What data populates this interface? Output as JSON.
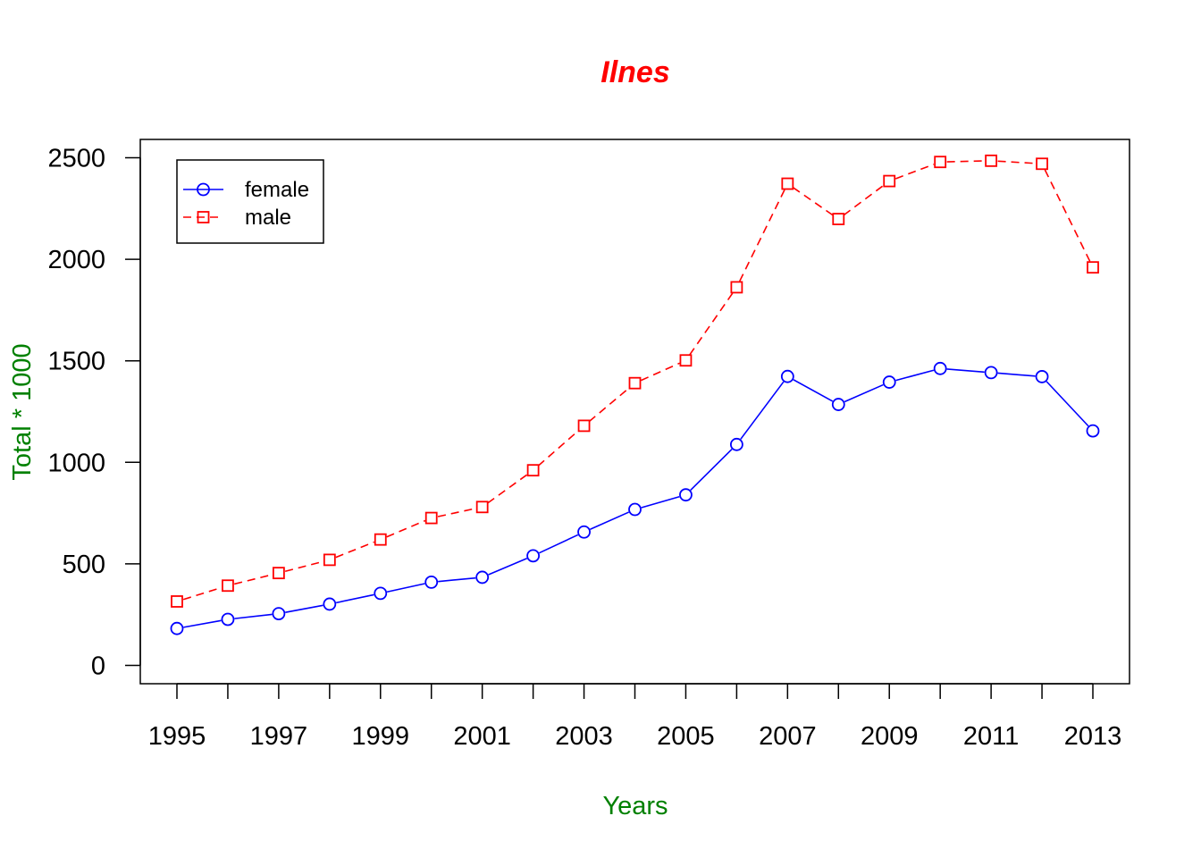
{
  "chart_data": {
    "type": "line",
    "title": "Ilnes",
    "xlabel": "Years",
    "ylabel": "Total * 1000",
    "colors": {
      "title": "#ff0000",
      "axis_labels": "#008000",
      "female": "#0000ff",
      "male": "#ff0000"
    },
    "x": [
      1995,
      1996,
      1997,
      1998,
      1999,
      2000,
      2001,
      2002,
      2003,
      2004,
      2005,
      2006,
      2007,
      2008,
      2009,
      2010,
      2011,
      2012,
      2013
    ],
    "x_tick_labels": [
      "1995",
      "1997",
      "1999",
      "2001",
      "2003",
      "2005",
      "2007",
      "2009",
      "2011",
      "2013"
    ],
    "y_tick_labels": [
      "0",
      "500",
      "1000",
      "1500",
      "2000",
      "2500"
    ],
    "ylim": [
      -90,
      2590
    ],
    "xlim": [
      1994.28,
      2013.72
    ],
    "grid": false,
    "legend_position": "top-left",
    "series": [
      {
        "name": "female",
        "line": "solid",
        "marker": "circle",
        "values": [
          182,
          227,
          255,
          302,
          355,
          410,
          434,
          540,
          657,
          768,
          840,
          1088,
          1423,
          1285,
          1395,
          1462,
          1442,
          1422,
          1155
        ]
      },
      {
        "name": "male",
        "line": "dashed",
        "marker": "square",
        "values": [
          315,
          393,
          455,
          520,
          620,
          726,
          780,
          961,
          1180,
          1390,
          1502,
          1862,
          2372,
          2198,
          2385,
          2479,
          2485,
          2470,
          1960
        ]
      }
    ]
  }
}
